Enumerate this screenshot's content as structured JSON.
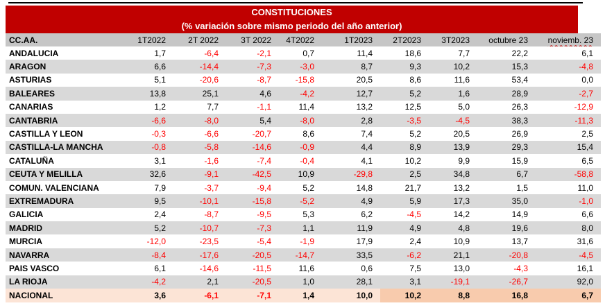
{
  "title": {
    "line1": "CONSTITUCIONES",
    "line2": "(% variación sobre mismo periodo del año anterior)"
  },
  "columns": [
    "CC.AA.",
    "1T2022",
    "2T 2022",
    "3T 2022",
    "4T2022",
    "1T2023",
    "2T2023",
    "3T2023",
    "octubre 23",
    "noviemb. 23"
  ],
  "rows": [
    {
      "name": "ANDALUCIA",
      "values": [
        "1,7",
        "-6,4",
        "-2,1",
        "0,7",
        "11,4",
        "18,6",
        "7,7",
        "22,2",
        "6,1"
      ]
    },
    {
      "name": "ARAGON",
      "values": [
        "6,6",
        "-14,4",
        "-7,3",
        "-3,0",
        "8,7",
        "9,3",
        "10,2",
        "15,3",
        "-4,8"
      ]
    },
    {
      "name": "ASTURIAS",
      "values": [
        "5,1",
        "-20,6",
        "-8,7",
        "-15,8",
        "20,5",
        "8,6",
        "11,6",
        "53,4",
        "0,0"
      ]
    },
    {
      "name": "BALEARES",
      "values": [
        "13,8",
        "25,1",
        "4,6",
        "-4,2",
        "12,7",
        "5,2",
        "1,6",
        "28,9",
        "-2,7"
      ]
    },
    {
      "name": "CANARIAS",
      "values": [
        "1,2",
        "7,7",
        "-1,1",
        "11,4",
        "13,2",
        "12,5",
        "5,0",
        "26,3",
        "-12,9"
      ]
    },
    {
      "name": "CANTABRIA",
      "values": [
        "-6,6",
        "-8,0",
        "5,4",
        "-8,0",
        "2,8",
        "-3,5",
        "-4,5",
        "38,3",
        "-11,3"
      ]
    },
    {
      "name": "CASTILLA Y LEON",
      "values": [
        "-0,3",
        "-6,6",
        "-20,7",
        "8,6",
        "7,4",
        "5,2",
        "20,5",
        "26,9",
        "2,5"
      ]
    },
    {
      "name": "CASTILLA-LA MANCHA",
      "values": [
        "-0,8",
        "-5,8",
        "-14,6",
        "-0,9",
        "4,4",
        "8,9",
        "13,9",
        "29,3",
        "15,4"
      ]
    },
    {
      "name": "CATALUÑA",
      "values": [
        "3,1",
        "-1,6",
        "-7,4",
        "-0,4",
        "4,1",
        "10,2",
        "9,9",
        "15,9",
        "6,5"
      ]
    },
    {
      "name": "CEUTA Y MELILLA",
      "values": [
        "32,6",
        "-9,1",
        "-42,5",
        "10,9",
        "-29,8",
        "2,5",
        "34,8",
        "6,7",
        "-58,8"
      ]
    },
    {
      "name": "COMUN. VALENCIANA",
      "values": [
        "7,9",
        "-3,7",
        "-9,4",
        "5,2",
        "14,8",
        "21,7",
        "13,2",
        "1,5",
        "11,0"
      ]
    },
    {
      "name": "EXTREMADURA",
      "values": [
        "9,5",
        "-10,1",
        "-15,8",
        "-5,2",
        "4,9",
        "5,9",
        "17,3",
        "35,0",
        "-1,0"
      ]
    },
    {
      "name": "GALICIA",
      "values": [
        "2,4",
        "-8,7",
        "-9,5",
        "5,3",
        "6,2",
        "-4,5",
        "14,2",
        "14,9",
        "6,6"
      ]
    },
    {
      "name": "MADRID",
      "values": [
        "5,2",
        "-10,7",
        "-7,3",
        "1,1",
        "11,9",
        "4,9",
        "4,8",
        "19,6",
        "8,0"
      ]
    },
    {
      "name": "MURCIA",
      "values": [
        "-12,0",
        "-23,5",
        "-5,4",
        "-1,9",
        "17,9",
        "2,4",
        "10,9",
        "13,7",
        "31,6"
      ]
    },
    {
      "name": "NAVARRA",
      "values": [
        "-8,4",
        "-17,6",
        "-20,5",
        "-14,7",
        "33,5",
        "-6,2",
        "21,1",
        "-20,8",
        "-4,5"
      ]
    },
    {
      "name": "PAIS VASCO",
      "values": [
        "6,1",
        "-14,6",
        "-11,5",
        "11,6",
        "0,6",
        "7,5",
        "13,0",
        "-4,3",
        "16,1"
      ]
    },
    {
      "name": "LA RIOJA",
      "values": [
        "-4,2",
        "2,1",
        "-20,5",
        "1,0",
        "28,1",
        "3,1",
        "-19,1",
        "-26,7",
        "92,0"
      ]
    }
  ],
  "total_row": {
    "name": "NACIONAL",
    "values": [
      "3,6",
      "-6,1",
      "-7,1",
      "1,4",
      "10,0",
      "10,2",
      "8,8",
      "16,8",
      "6,7"
    ]
  },
  "colors": {
    "band_red": "#C00000",
    "negative_red": "#FF0000",
    "header_gray": "#C6C6C6",
    "stripe_gray": "#D9D9D9",
    "total_left_peach": "#FCE4D6",
    "total_right_orange": "#F8CBAD"
  },
  "chart_data": {
    "type": "table",
    "title": "CONSTITUCIONES",
    "subtitle": "(% variación sobre mismo periodo del año anterior)",
    "columns": [
      "CC.AA.",
      "1T2022",
      "2T 2022",
      "3T 2022",
      "4T2022",
      "1T2023",
      "2T2023",
      "3T2023",
      "octubre 23",
      "noviemb. 23"
    ],
    "rows": [
      {
        "name": "ANDALUCIA",
        "values": [
          1.7,
          -6.4,
          -2.1,
          0.7,
          11.4,
          18.6,
          7.7,
          22.2,
          6.1
        ]
      },
      {
        "name": "ARAGON",
        "values": [
          6.6,
          -14.4,
          -7.3,
          -3.0,
          8.7,
          9.3,
          10.2,
          15.3,
          -4.8
        ]
      },
      {
        "name": "ASTURIAS",
        "values": [
          5.1,
          -20.6,
          -8.7,
          -15.8,
          20.5,
          8.6,
          11.6,
          53.4,
          0.0
        ]
      },
      {
        "name": "BALEARES",
        "values": [
          13.8,
          25.1,
          4.6,
          -4.2,
          12.7,
          5.2,
          1.6,
          28.9,
          -2.7
        ]
      },
      {
        "name": "CANARIAS",
        "values": [
          1.2,
          7.7,
          -1.1,
          11.4,
          13.2,
          12.5,
          5.0,
          26.3,
          -12.9
        ]
      },
      {
        "name": "CANTABRIA",
        "values": [
          -6.6,
          -8.0,
          5.4,
          -8.0,
          2.8,
          -3.5,
          -4.5,
          38.3,
          -11.3
        ]
      },
      {
        "name": "CASTILLA Y LEON",
        "values": [
          -0.3,
          -6.6,
          -20.7,
          8.6,
          7.4,
          5.2,
          20.5,
          26.9,
          2.5
        ]
      },
      {
        "name": "CASTILLA-LA MANCHA",
        "values": [
          -0.8,
          -5.8,
          -14.6,
          -0.9,
          4.4,
          8.9,
          13.9,
          29.3,
          15.4
        ]
      },
      {
        "name": "CATALUÑA",
        "values": [
          3.1,
          -1.6,
          -7.4,
          -0.4,
          4.1,
          10.2,
          9.9,
          15.9,
          6.5
        ]
      },
      {
        "name": "CEUTA Y MELILLA",
        "values": [
          32.6,
          -9.1,
          -42.5,
          10.9,
          -29.8,
          2.5,
          34.8,
          6.7,
          -58.8
        ]
      },
      {
        "name": "COMUN. VALENCIANA",
        "values": [
          7.9,
          -3.7,
          -9.4,
          5.2,
          14.8,
          21.7,
          13.2,
          1.5,
          11.0
        ]
      },
      {
        "name": "EXTREMADURA",
        "values": [
          9.5,
          -10.1,
          -15.8,
          -5.2,
          4.9,
          5.9,
          17.3,
          35.0,
          -1.0
        ]
      },
      {
        "name": "GALICIA",
        "values": [
          2.4,
          -8.7,
          -9.5,
          5.3,
          6.2,
          -4.5,
          14.2,
          14.9,
          6.6
        ]
      },
      {
        "name": "MADRID",
        "values": [
          5.2,
          -10.7,
          -7.3,
          1.1,
          11.9,
          4.9,
          4.8,
          19.6,
          8.0
        ]
      },
      {
        "name": "MURCIA",
        "values": [
          -12.0,
          -23.5,
          -5.4,
          -1.9,
          17.9,
          2.4,
          10.9,
          13.7,
          31.6
        ]
      },
      {
        "name": "NAVARRA",
        "values": [
          -8.4,
          -17.6,
          -20.5,
          -14.7,
          33.5,
          -6.2,
          21.1,
          -20.8,
          -4.5
        ]
      },
      {
        "name": "PAIS VASCO",
        "values": [
          6.1,
          -14.6,
          -11.5,
          11.6,
          0.6,
          7.5,
          13.0,
          -4.3,
          16.1
        ]
      },
      {
        "name": "LA RIOJA",
        "values": [
          -4.2,
          2.1,
          -20.5,
          1.0,
          28.1,
          3.1,
          -19.1,
          -26.7,
          92.0
        ]
      },
      {
        "name": "NACIONAL",
        "values": [
          3.6,
          -6.1,
          -7.1,
          1.4,
          10.0,
          10.2,
          8.8,
          16.8,
          6.7
        ]
      }
    ]
  }
}
